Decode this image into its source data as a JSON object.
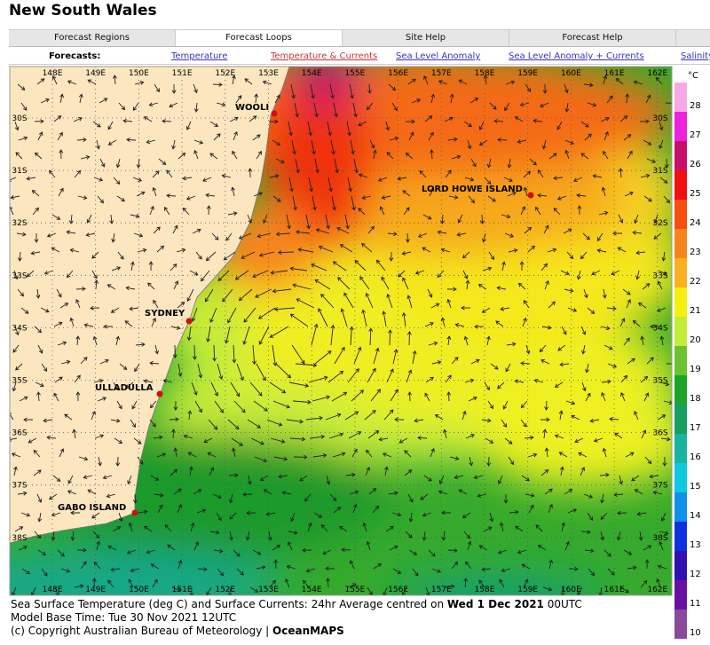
{
  "header": {
    "title": "New South Wales"
  },
  "tabs": [
    "Forecast Regions",
    "Forecast Loops",
    "Site Help",
    "Forecast Help"
  ],
  "forecasts": {
    "label": "Forecasts:",
    "links": [
      "Temperature",
      "Temperature & Currents",
      "Sea Level Anomaly",
      "Sea Level Anomaly + Currents",
      "Salinity"
    ]
  },
  "map": {
    "longitudes": [
      "148E",
      "149E",
      "150E",
      "151E",
      "152E",
      "153E",
      "154E",
      "155E",
      "156E",
      "157E",
      "158E",
      "159E",
      "160E",
      "161E",
      "162E"
    ],
    "latitudes": [
      "30S",
      "31S",
      "32S",
      "33S",
      "34S",
      "35S",
      "36S",
      "37S",
      "38S"
    ],
    "places": [
      "WOOLI",
      "LORD HOWE ISLAND",
      "SYDNEY",
      "ULLADULLA",
      "GABO ISLAND"
    ]
  },
  "colorbar": {
    "unit": "°C",
    "ticks": [
      {
        "value": 28,
        "color": "#f7a8e8"
      },
      {
        "value": 27,
        "color": "#ee22dd"
      },
      {
        "value": 26,
        "color": "#c8106a"
      },
      {
        "value": 25,
        "color": "#f01010"
      },
      {
        "value": 24,
        "color": "#f44e10"
      },
      {
        "value": 23,
        "color": "#f7841a"
      },
      {
        "value": 22,
        "color": "#fab020"
      },
      {
        "value": 21,
        "color": "#f5f010"
      },
      {
        "value": 20,
        "color": "#c4ec3a"
      },
      {
        "value": 19,
        "color": "#6cc230"
      },
      {
        "value": 18,
        "color": "#1ea428"
      },
      {
        "value": 17,
        "color": "#16a060"
      },
      {
        "value": 16,
        "color": "#18b4a0"
      },
      {
        "value": 15,
        "color": "#10c8e0"
      },
      {
        "value": 14,
        "color": "#1090e8"
      },
      {
        "value": 13,
        "color": "#1030e0"
      },
      {
        "value": 12,
        "color": "#3010b0"
      },
      {
        "value": 11,
        "color": "#6a10a0"
      },
      {
        "value": 10,
        "color": "#8a4a9a"
      }
    ]
  },
  "caption": {
    "line1": "Sea Surface Temperature (deg C) and Surface Currents: 24hr Average centred on ",
    "date": "Wed 1 Dec 2021",
    "time": " 00UTC",
    "line2": "Model Base Time: Tue 30 Nov 2021 12UTC",
    "line3": "(c) Copyright Australian Bureau of Meteorology | ",
    "brand": "OceanMAPS"
  }
}
